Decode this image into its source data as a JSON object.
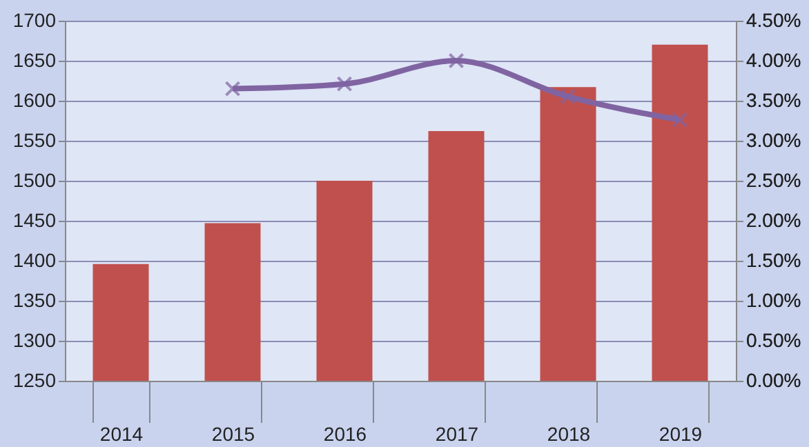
{
  "chart_data": {
    "type": "bar",
    "categories": [
      "2014",
      "2015",
      "2016",
      "2017",
      "2018",
      "2019"
    ],
    "series": [
      {
        "color": "#c0504d",
        "values": [
          1396,
          1447,
          1500,
          1562,
          1617,
          1670
        ]
      },
      {
        "type": "line",
        "axis": "y2",
        "color": "#8064a2",
        "marker": "cross",
        "values": [
          null,
          3.65,
          3.71,
          4.0,
          3.55,
          3.26
        ]
      }
    ],
    "ylim": [
      1250,
      1700
    ],
    "yticks": [
      1250,
      1300,
      1350,
      1400,
      1450,
      1500,
      1550,
      1600,
      1650,
      1700
    ],
    "y2lim": [
      0,
      4.5
    ],
    "y2ticks": [
      {
        "value": 0,
        "label": "0.00%"
      },
      {
        "value": 0.5,
        "label": "0.50%"
      },
      {
        "value": 1,
        "label": "1.00%"
      },
      {
        "value": 1.5,
        "label": "1.50%"
      },
      {
        "value": 2,
        "label": "2.00%"
      },
      {
        "value": 2.5,
        "label": "2.50%"
      },
      {
        "value": 3,
        "label": "3.00%"
      },
      {
        "value": 3.5,
        "label": "3.50%"
      },
      {
        "value": 4,
        "label": "4.00%"
      },
      {
        "value": 4.5,
        "label": "4.50%"
      }
    ],
    "grid": "y"
  }
}
